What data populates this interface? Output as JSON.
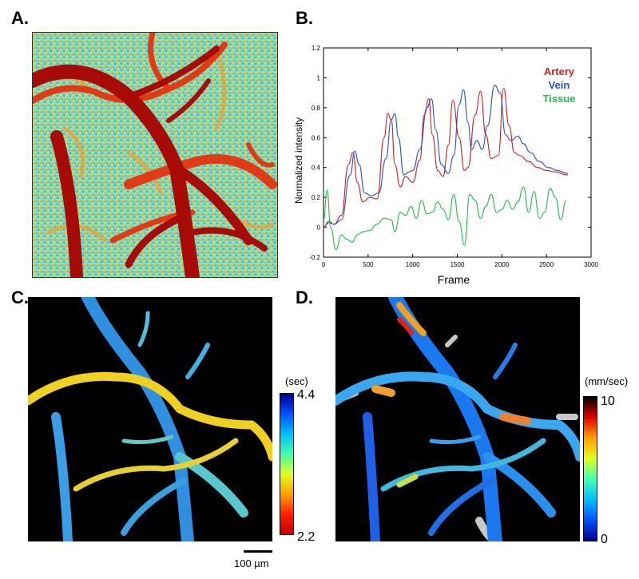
{
  "panels": {
    "a": {
      "label": "A."
    },
    "b": {
      "label": "B."
    },
    "c": {
      "label": "C."
    },
    "d": {
      "label": "D."
    }
  },
  "chart_data": {
    "type": "line",
    "xlabel": "Frame",
    "ylabel": "Normalized intensity",
    "xlim": [
      0,
      3000
    ],
    "ylim": [
      -0.2,
      1.2
    ],
    "xticks": [
      "0",
      "500",
      "1000",
      "1500",
      "2000",
      "2500",
      "3000"
    ],
    "yticks": [
      "-0.2",
      "0",
      "0.2",
      "0.4",
      "0.6",
      "0.8",
      "1",
      "1.2"
    ],
    "legend_position": "top-right",
    "series": [
      {
        "name": "Artery",
        "color": "#cc2020",
        "x": [
          0,
          60,
          120,
          200,
          280,
          330,
          380,
          440,
          520,
          600,
          680,
          720,
          760,
          800,
          860,
          920,
          1000,
          1080,
          1130,
          1180,
          1220,
          1280,
          1340,
          1400,
          1450,
          1520,
          1580,
          1620,
          1700,
          1760,
          1820,
          1880,
          1960,
          2020,
          2080,
          2140,
          2200,
          2300,
          2400,
          2500,
          2600,
          2740
        ],
        "y": [
          0.0,
          0.04,
          0.02,
          0.08,
          0.42,
          0.5,
          0.3,
          0.17,
          0.2,
          0.19,
          0.6,
          0.76,
          0.72,
          0.42,
          0.27,
          0.34,
          0.3,
          0.45,
          0.75,
          0.86,
          0.62,
          0.38,
          0.34,
          0.55,
          0.85,
          0.6,
          0.38,
          0.4,
          0.75,
          0.91,
          0.62,
          0.46,
          0.48,
          0.93,
          0.68,
          0.5,
          0.48,
          0.44,
          0.4,
          0.38,
          0.37,
          0.35
        ]
      },
      {
        "name": "Vein",
        "color": "#2a4fc8",
        "x": [
          0,
          60,
          120,
          200,
          300,
          350,
          400,
          460,
          540,
          620,
          700,
          760,
          800,
          840,
          900,
          960,
          1000,
          1080,
          1160,
          1210,
          1260,
          1320,
          1400,
          1460,
          1520,
          1570,
          1620,
          1660,
          1720,
          1780,
          1840,
          1920,
          1980,
          2040,
          2100,
          2180,
          2240,
          2320,
          2420,
          2520,
          2620,
          2740
        ],
        "y": [
          0.0,
          0.03,
          0.02,
          0.05,
          0.35,
          0.51,
          0.42,
          0.23,
          0.21,
          0.23,
          0.46,
          0.72,
          0.76,
          0.6,
          0.35,
          0.37,
          0.38,
          0.52,
          0.8,
          0.86,
          0.65,
          0.42,
          0.36,
          0.48,
          0.82,
          0.92,
          0.7,
          0.52,
          0.58,
          0.52,
          0.68,
          0.95,
          0.9,
          0.62,
          0.58,
          0.61,
          0.56,
          0.5,
          0.44,
          0.4,
          0.38,
          0.36
        ]
      },
      {
        "name": "Tissue",
        "color": "#2ab84a",
        "x": [
          0,
          40,
          80,
          140,
          200,
          260,
          320,
          380,
          440,
          520,
          600,
          680,
          760,
          800,
          860,
          920,
          980,
          1040,
          1100,
          1160,
          1220,
          1280,
          1340,
          1400,
          1460,
          1520,
          1580,
          1640,
          1700,
          1760,
          1820,
          1880,
          1940,
          2000,
          2060,
          2120,
          2180,
          2240,
          2300,
          2360,
          2420,
          2480,
          2540,
          2600,
          2660,
          2720
        ],
        "y": [
          0.05,
          0.25,
          0.0,
          -0.15,
          -0.05,
          -0.08,
          -0.1,
          -0.05,
          -0.03,
          -0.02,
          0.02,
          0.06,
          0.05,
          -0.03,
          0.1,
          0.08,
          0.14,
          0.06,
          0.18,
          0.09,
          0.1,
          0.17,
          0.12,
          0.05,
          0.22,
          0.04,
          -0.12,
          0.22,
          0.18,
          0.06,
          0.14,
          0.22,
          0.1,
          0.12,
          0.18,
          0.12,
          0.17,
          0.27,
          0.1,
          0.24,
          0.06,
          0.1,
          0.26,
          0.2,
          0.05,
          0.18
        ]
      }
    ]
  },
  "colorbar_c": {
    "unit": "(sec)",
    "max": "4.4",
    "min": "2.2"
  },
  "colorbar_d": {
    "unit": "(mm/sec)",
    "max": "10",
    "min": "0"
  },
  "scale_bar": {
    "label": "100 µm"
  }
}
